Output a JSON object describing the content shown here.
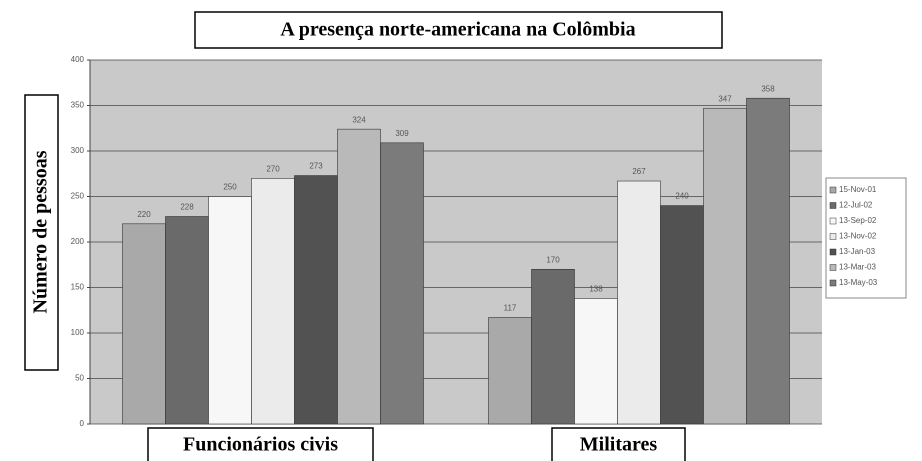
{
  "chart_data": {
    "type": "bar",
    "title": "A presença norte-americana na Colômbia",
    "y_label": "Número de pessoas",
    "categories": [
      "Funcionários civis",
      "Militares"
    ],
    "series": [
      {
        "name": "15-Nov-01",
        "color": "#a9a9a9",
        "values": [
          220,
          117
        ]
      },
      {
        "name": "12-Jul-02",
        "color": "#6a6a6a",
        "values": [
          228,
          170
        ]
      },
      {
        "name": "13-Sep-02",
        "color": "#f7f7f7",
        "values": [
          250,
          138
        ]
      },
      {
        "name": "13-Nov-02",
        "color": "#ebebeb",
        "values": [
          270,
          267
        ]
      },
      {
        "name": "13-Jan-03",
        "color": "#525252",
        "values": [
          273,
          240
        ]
      },
      {
        "name": "13-Mar-03",
        "color": "#b9b9b9",
        "values": [
          324,
          347
        ]
      },
      {
        "name": "13-May-03",
        "color": "#7b7b7b",
        "values": [
          309,
          358
        ]
      }
    ],
    "ylim": [
      0,
      400
    ],
    "yticks": [
      0,
      50,
      100,
      150,
      200,
      250,
      300,
      350,
      400
    ],
    "grid": true
  }
}
